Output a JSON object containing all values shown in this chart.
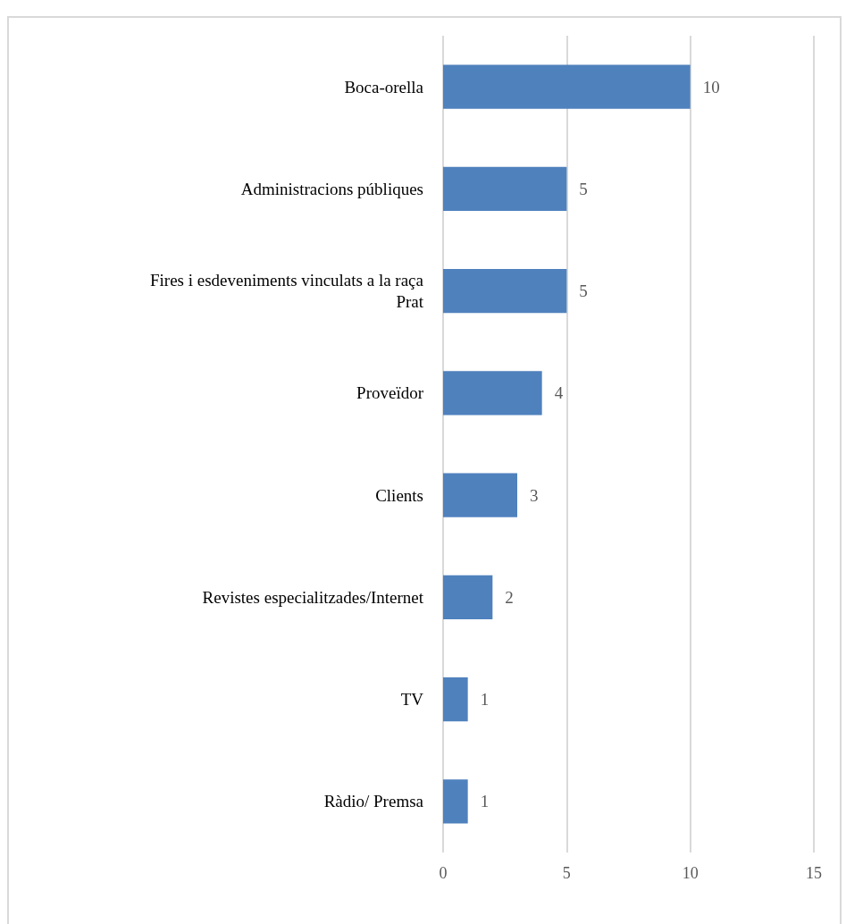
{
  "chart_data": {
    "type": "bar",
    "orientation": "horizontal",
    "categories": [
      "Boca-orella",
      "Administracions públiques",
      "Fires i esdeveniments vinculats a la raça Prat",
      "Proveïdor",
      "Clients",
      "Revistes especialitzades/Internet",
      "TV",
      "Ràdio/ Premsa"
    ],
    "values": [
      10,
      5,
      5,
      4,
      3,
      2,
      1,
      1
    ],
    "color": "#4f81bd",
    "xlim": [
      0,
      15
    ],
    "xticks": [
      0,
      5,
      10,
      15
    ],
    "grid": "x",
    "data_labels": true
  }
}
